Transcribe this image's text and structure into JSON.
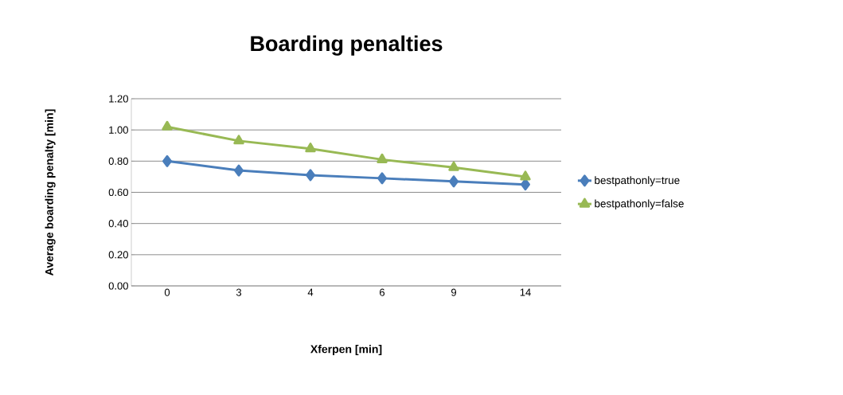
{
  "chart_data": {
    "type": "line",
    "title": "Boarding penalties",
    "xlabel": "Xferpen [min]",
    "ylabel": "Average boarding penalty [min]",
    "categories": [
      "0",
      "3",
      "4",
      "6",
      "9",
      "14"
    ],
    "series": [
      {
        "name": "bestpathonly=true",
        "color": "#4a7ebb",
        "marker": "diamond",
        "values": [
          0.8,
          0.74,
          0.71,
          0.69,
          0.67,
          0.65
        ]
      },
      {
        "name": "bestpathonly=false",
        "color": "#98b954",
        "marker": "triangle",
        "values": [
          1.02,
          0.93,
          0.88,
          0.81,
          0.76,
          0.7
        ]
      }
    ],
    "ylim": [
      0,
      1.2
    ],
    "yticks": [
      {
        "value": 0,
        "label": "0.00"
      },
      {
        "value": 0.2,
        "label": "0.20"
      },
      {
        "value": 0.4,
        "label": "0.40"
      },
      {
        "value": 0.6,
        "label": "0.60"
      },
      {
        "value": 0.8,
        "label": "0.80"
      },
      {
        "value": 1.0,
        "label": "1.00"
      },
      {
        "value": 1.2,
        "label": "1.20"
      }
    ],
    "grid": "y",
    "legend": "right",
    "line_style": "solid"
  }
}
